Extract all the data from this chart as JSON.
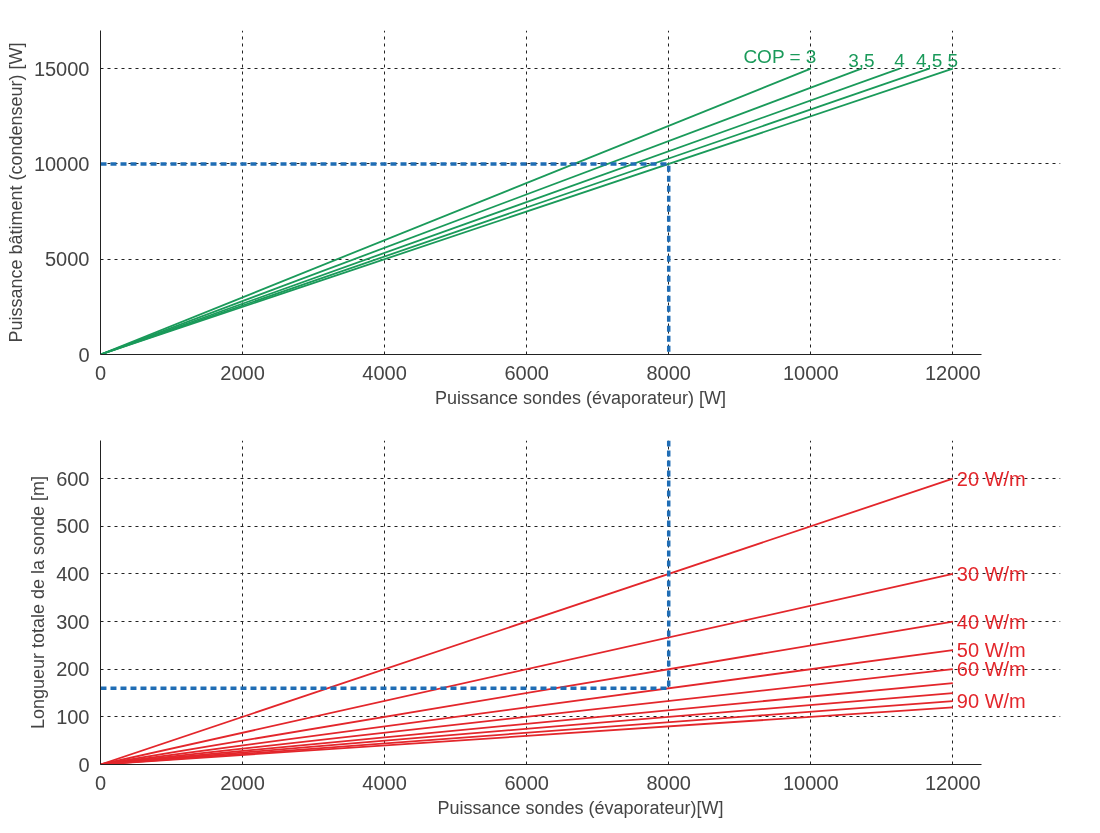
{
  "chart_data": [
    {
      "type": "line",
      "xlabel": "Puissance sondes (évaporateur) [W]",
      "ylabel": "Puissance bâtiment (condenseur) [W]",
      "xlim": [
        0,
        12400
      ],
      "ylim": [
        0,
        17000
      ],
      "xticks": [
        0,
        2000,
        4000,
        6000,
        8000,
        10000,
        12000
      ],
      "yticks": [
        0,
        5000,
        10000,
        15000
      ],
      "grid": true,
      "series": [
        {
          "name": "COP = 3",
          "color": "#1a9a5a",
          "x": [
            0,
            10000
          ],
          "values": [
            0,
            15000
          ]
        },
        {
          "name": "3,5",
          "color": "#1a9a5a",
          "x": [
            0,
            10714
          ],
          "values": [
            0,
            15000
          ]
        },
        {
          "name": "4",
          "color": "#1a9a5a",
          "x": [
            0,
            11250
          ],
          "values": [
            0,
            15000
          ]
        },
        {
          "name": "4,5",
          "color": "#1a9a5a",
          "x": [
            0,
            11667
          ],
          "values": [
            0,
            15000
          ]
        },
        {
          "name": "5",
          "color": "#1a9a5a",
          "x": [
            0,
            12000
          ],
          "values": [
            0,
            15000
          ]
        },
        {
          "color": "#1f6db5",
          "line_style": "dashed",
          "x": [
            0,
            8000,
            8000
          ],
          "values": [
            10000,
            10000,
            0
          ]
        }
      ]
    },
    {
      "type": "line",
      "xlabel": "Puissance sondes (évaporateur)[W]",
      "ylabel": "Longueur totale de la sonde [m]",
      "xlim": [
        0,
        12400
      ],
      "ylim": [
        0,
        680
      ],
      "xticks": [
        0,
        2000,
        4000,
        6000,
        8000,
        10000,
        12000
      ],
      "yticks": [
        0,
        100,
        200,
        300,
        400,
        500,
        600
      ],
      "grid": true,
      "series": [
        {
          "name": "20 W/m",
          "color": "#e3262b",
          "x": [
            0,
            12000
          ],
          "values": [
            0,
            600
          ]
        },
        {
          "name": "30 W/m",
          "color": "#e3262b",
          "x": [
            0,
            12000
          ],
          "values": [
            0,
            400
          ]
        },
        {
          "name": "40 W/m",
          "color": "#e3262b",
          "x": [
            0,
            12000
          ],
          "values": [
            0,
            300
          ]
        },
        {
          "name": "50 W/m",
          "color": "#e3262b",
          "x": [
            0,
            12000
          ],
          "values": [
            0,
            240
          ]
        },
        {
          "name": "60 W/m",
          "color": "#e3262b",
          "x": [
            0,
            12000
          ],
          "values": [
            0,
            200
          ]
        },
        {
          "color": "#e3262b",
          "x": [
            0,
            12000
          ],
          "values": [
            0,
            171
          ]
        },
        {
          "color": "#e3262b",
          "x": [
            0,
            12000
          ],
          "values": [
            0,
            150
          ]
        },
        {
          "name": "90 W/m",
          "color": "#e3262b",
          "x": [
            0,
            12000
          ],
          "values": [
            0,
            133
          ]
        },
        {
          "color": "#e3262b",
          "x": [
            0,
            12000
          ],
          "values": [
            0,
            120
          ]
        },
        {
          "color": "#1f6db5",
          "line_style": "dashed",
          "x": [
            8000,
            8000,
            0
          ],
          "values": [
            680,
            160,
            160
          ]
        }
      ]
    }
  ]
}
